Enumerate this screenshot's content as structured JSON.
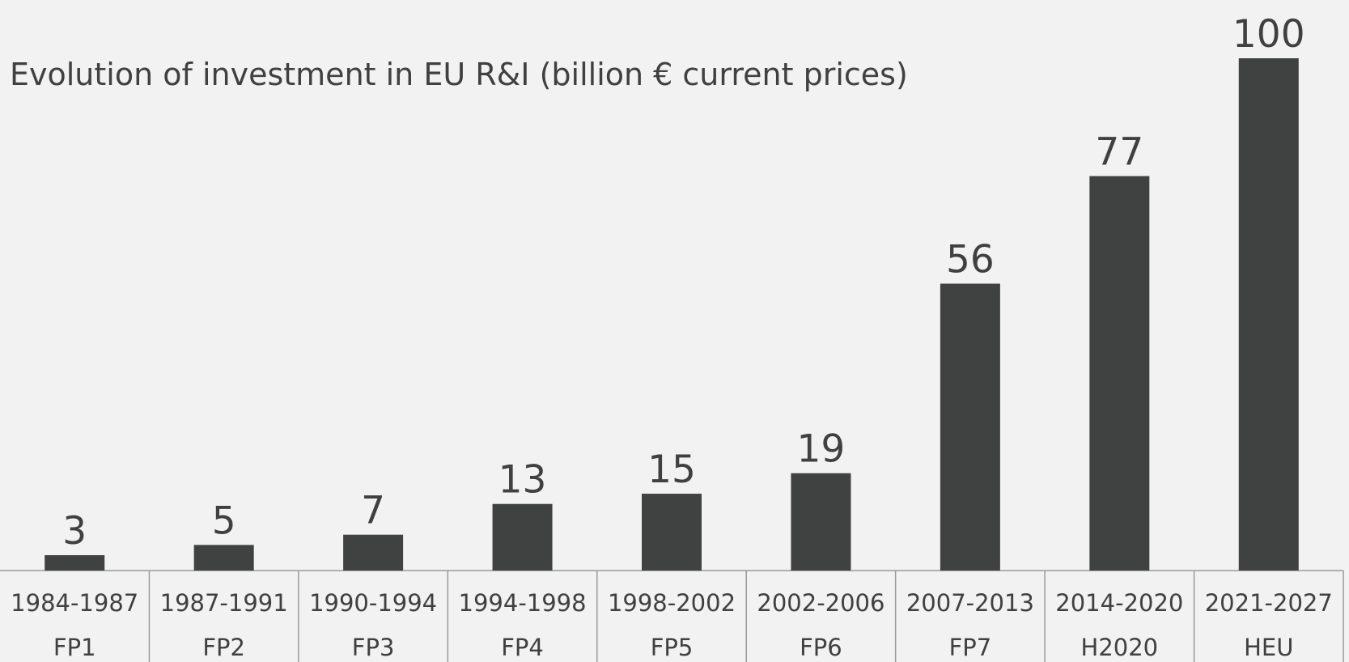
{
  "chart_data": {
    "type": "bar",
    "title": "Evolution of investment in EU R&I (billion € current prices)",
    "xlabel": "",
    "ylabel": "",
    "ylim": [
      0,
      100
    ],
    "grid": false,
    "legend": "none",
    "categories": [
      "1984-1987",
      "1987-1991",
      "1990-1994",
      "1994-1998",
      "1998-2002",
      "2002-2006",
      "2007-2013",
      "2014-2020",
      "2021-2027"
    ],
    "programmes": [
      "FP1",
      "FP2",
      "FP3",
      "FP4",
      "FP5",
      "FP6",
      "FP7",
      "H2020",
      "HEU"
    ],
    "values": [
      3,
      5,
      7,
      13,
      15,
      19,
      56,
      77,
      100
    ],
    "colors": {
      "bar": "#404241",
      "text": "#404040",
      "grid_lines": "#9a9a9a",
      "background": "#f2f2f2"
    }
  }
}
